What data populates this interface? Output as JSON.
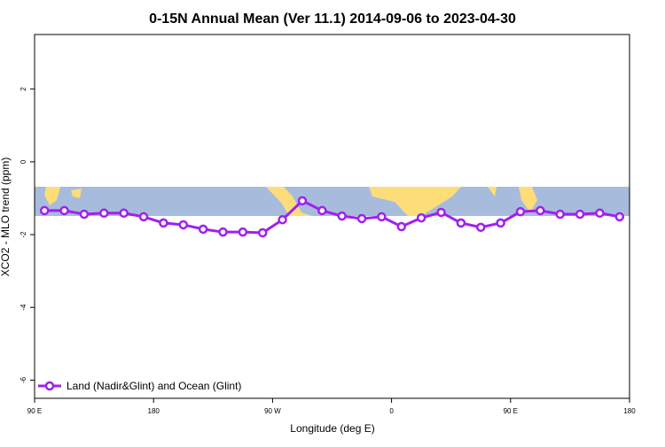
{
  "chart_data": {
    "type": "line",
    "title": "0-15N Annual Mean (Ver 11.1)   2014-09-06 to 2023-04-30",
    "xlabel": "Longitude (deg E)",
    "ylabel": "XCO2 - MLO trend (ppm)",
    "x": [
      97.5,
      112.5,
      127.5,
      142.5,
      157.5,
      172.5,
      187.5,
      202.5,
      217.5,
      232.5,
      247.5,
      262.5,
      277.5,
      292.5,
      307.5,
      322.5,
      337.5,
      352.5,
      367.5,
      382.5,
      397.5,
      412.5,
      427.5,
      442.5,
      457.5,
      472.5,
      487.5,
      502.5,
      517.5,
      532.5
    ],
    "series": [
      {
        "name": "Land (Nadir&Glint) and Ocean (Glint)",
        "color": "#a020f0",
        "values": [
          -1.34,
          -1.34,
          -1.44,
          -1.41,
          -1.41,
          -1.51,
          -1.68,
          -1.73,
          -1.85,
          -1.93,
          -1.93,
          -1.95,
          -1.59,
          -1.07,
          -1.34,
          -1.49,
          -1.56,
          -1.51,
          -1.78,
          -1.54,
          -1.39,
          -1.68,
          -1.8,
          -1.68,
          -1.37,
          -1.34,
          -1.44,
          -1.44,
          -1.41,
          -1.51
        ]
      }
    ],
    "xlim": [
      90,
      540
    ],
    "xticks": [
      {
        "value": 90,
        "label": "90 E"
      },
      180,
      {
        "value": 270,
        "label": "90 W"
      },
      {
        "value": 360,
        "label": "0"
      },
      {
        "value": 450,
        "label": "90 E"
      },
      {
        "value": 540,
        "label": "180"
      }
    ],
    "ylim": [
      -6.5,
      3.5
    ],
    "yticks": [
      -6,
      -4,
      -2,
      0,
      2
    ],
    "legend": "bottom-left"
  }
}
